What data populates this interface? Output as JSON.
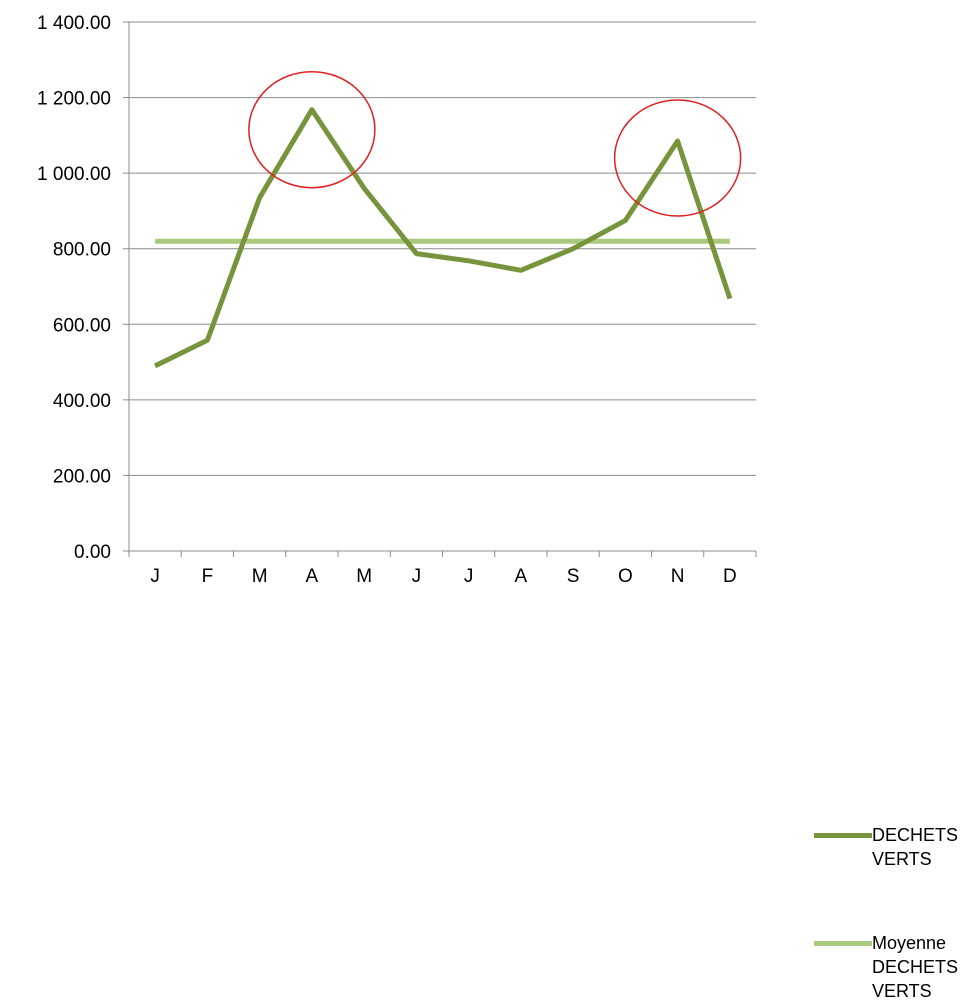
{
  "chart_data": {
    "type": "line",
    "categories": [
      "J",
      "F",
      "M",
      "A",
      "M",
      "J",
      "J",
      "A",
      "S",
      "O",
      "N",
      "D"
    ],
    "series": [
      {
        "name": "DECHETS VERTS",
        "values": [
          490,
          558,
          935,
          1168,
          960,
          787,
          768,
          743,
          800,
          875,
          1085,
          668
        ],
        "color": "#77933c"
      },
      {
        "name": "Moyenne DECHETS VERTS",
        "values": [
          820,
          820,
          820,
          820,
          820,
          820,
          820,
          820,
          820,
          820,
          820,
          820
        ],
        "color": "#a9c97f"
      }
    ],
    "ylim": [
      0,
      1400
    ],
    "yticks": [
      "0.00",
      "200.00",
      "400.00",
      "600.00",
      "800.00",
      "1 000.00",
      "1 200.00",
      "1 400.00"
    ],
    "ytick_values": [
      0,
      200,
      400,
      600,
      800,
      1000,
      1200,
      1400
    ],
    "grid": true,
    "legend_position": "right",
    "annotations": [
      {
        "type": "circle",
        "category_index": 3,
        "value": 1115,
        "color": "#e02020"
      },
      {
        "type": "circle",
        "category_index": 10,
        "value": 1040,
        "color": "#e02020"
      }
    ],
    "title": "",
    "xlabel": "",
    "ylabel": ""
  }
}
